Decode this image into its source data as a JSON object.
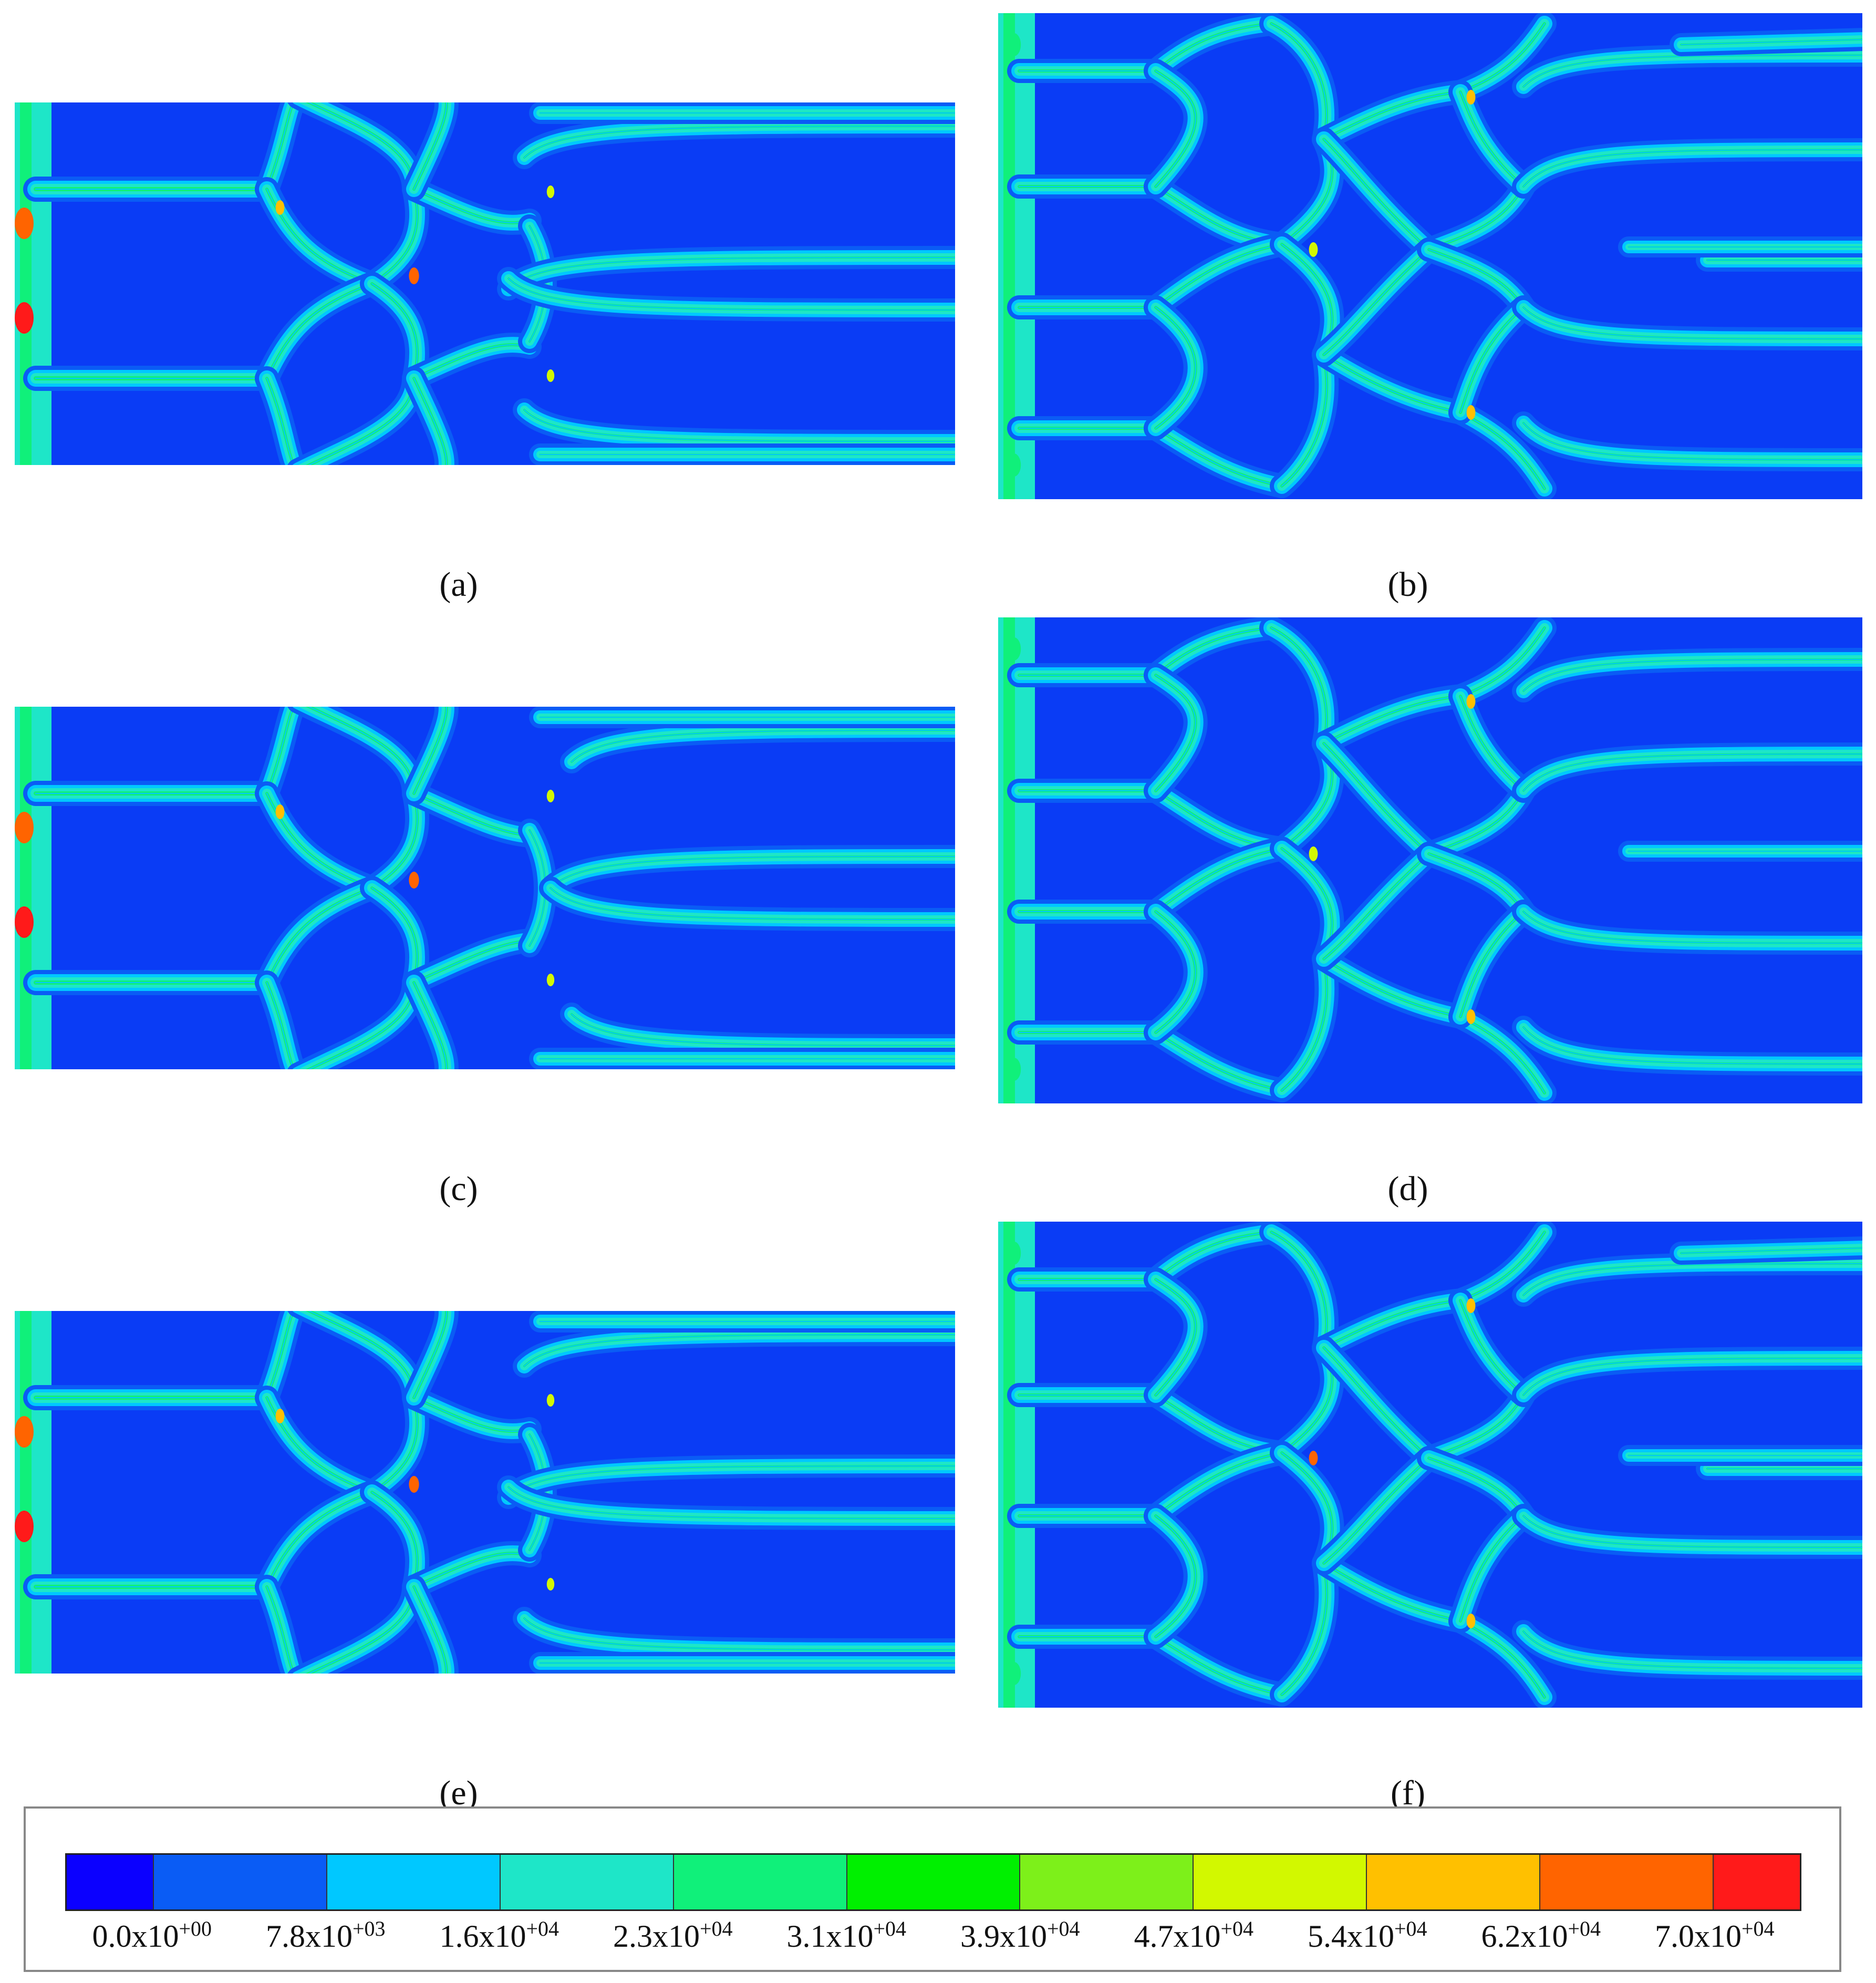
{
  "panels": [
    {
      "id": "a",
      "caption": "(a)"
    },
    {
      "id": "b",
      "caption": "(b)"
    },
    {
      "id": "c",
      "caption": "(c)"
    },
    {
      "id": "d",
      "caption": "(d)"
    },
    {
      "id": "e",
      "caption": "(e)"
    },
    {
      "id": "f",
      "caption": "(f)"
    }
  ],
  "colorbar": {
    "colors": [
      "#0b00ff",
      "#0a5cf5",
      "#00c8ff",
      "#1ee6c8",
      "#10f07a",
      "#00f000",
      "#7df01a",
      "#d2f800",
      "#ffc000",
      "#ff6400",
      "#ff1a1a"
    ],
    "ticks": [
      {
        "mantissa": "0.0x10",
        "exp": "+00"
      },
      {
        "mantissa": "7.8x10",
        "exp": "+03"
      },
      {
        "mantissa": "1.6x10",
        "exp": "+04"
      },
      {
        "mantissa": "2.3x10",
        "exp": "+04"
      },
      {
        "mantissa": "3.1x10",
        "exp": "+04"
      },
      {
        "mantissa": "3.9x10",
        "exp": "+04"
      },
      {
        "mantissa": "4.7x10",
        "exp": "+04"
      },
      {
        "mantissa": "5.4x10",
        "exp": "+04"
      },
      {
        "mantissa": "6.2x10",
        "exp": "+04"
      },
      {
        "mantissa": "7.0x10",
        "exp": "+04"
      }
    ]
  }
}
